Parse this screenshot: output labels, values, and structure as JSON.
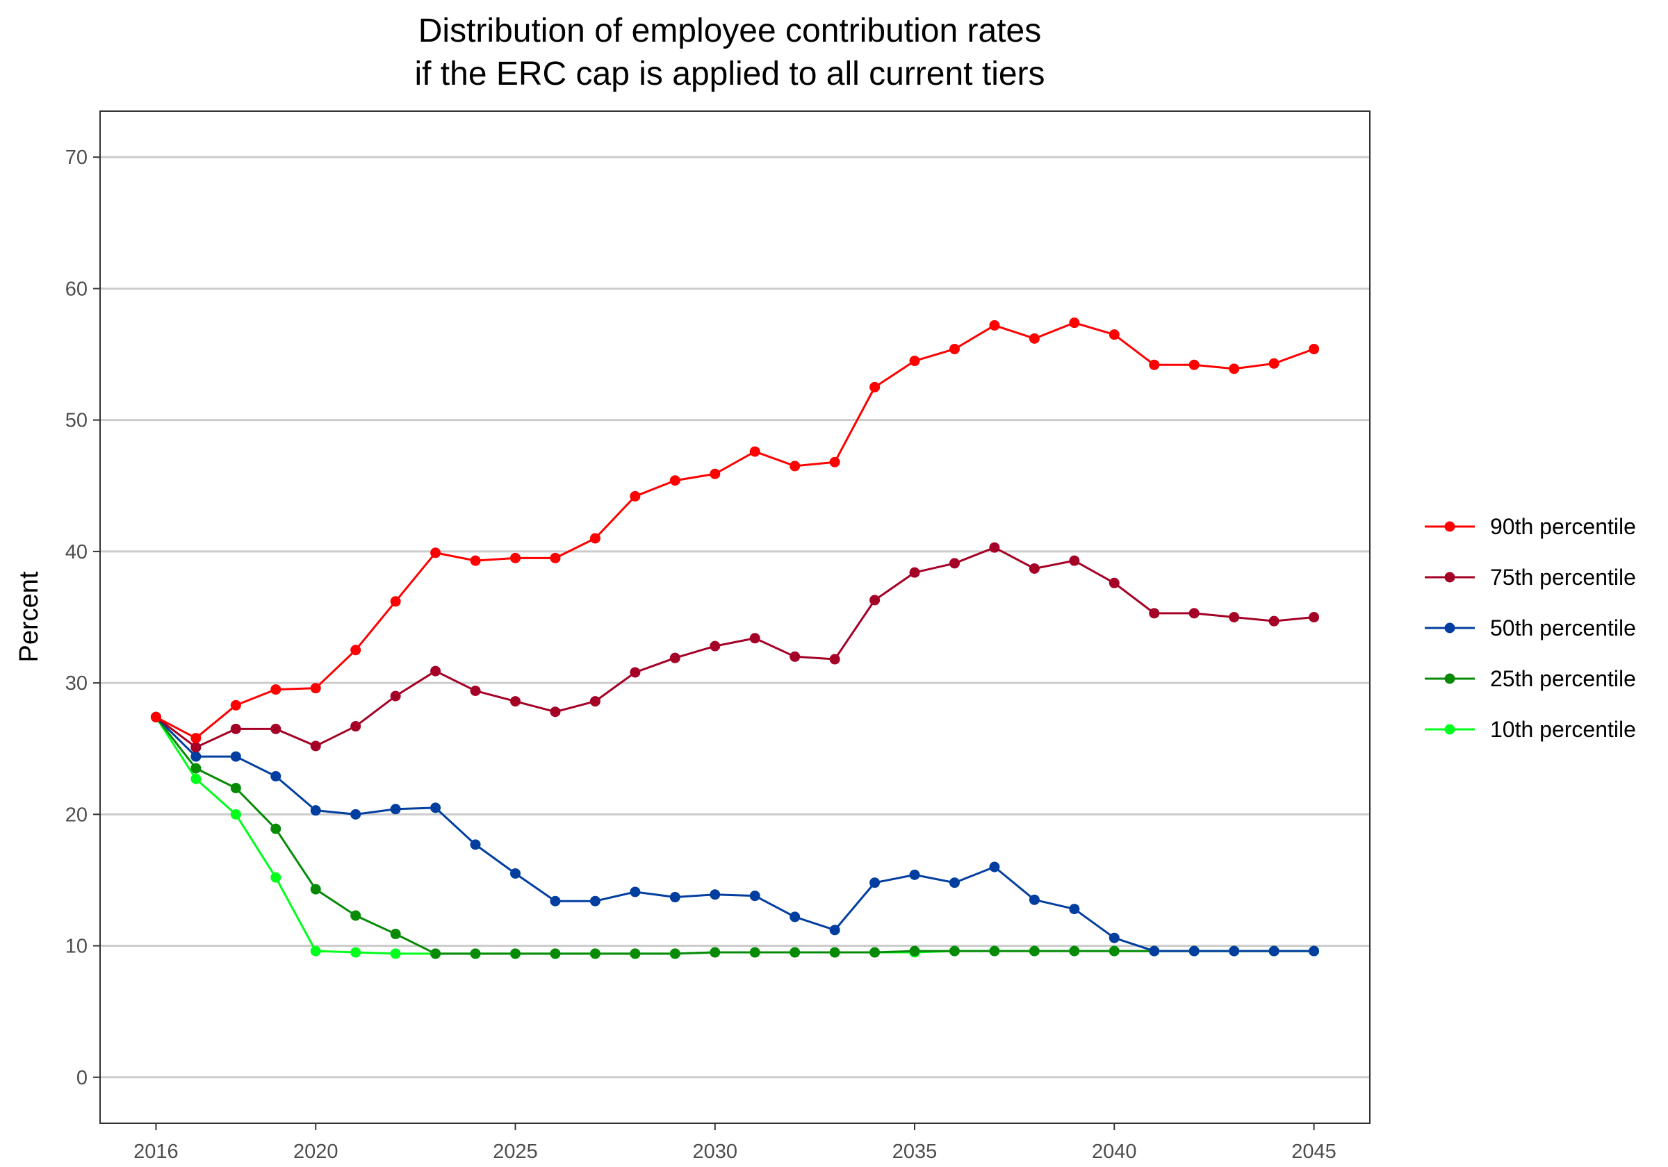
{
  "chart_data": {
    "type": "line",
    "title": "Distribution of employee contribution rates",
    "subtitle": "if the ERC cap is applied to all current tiers",
    "xlabel": "",
    "ylabel": "Percent",
    "xlim": [
      2014.6,
      2046.4
    ],
    "ylim": [
      -3.5,
      73.5
    ],
    "x_ticks": [
      2016,
      2020,
      2025,
      2030,
      2035,
      2040,
      2045
    ],
    "y_ticks": [
      0,
      10,
      20,
      30,
      40,
      50,
      60,
      70
    ],
    "grid": "horizontal",
    "legend_position": "right",
    "x": [
      2016,
      2017,
      2018,
      2019,
      2020,
      2021,
      2022,
      2023,
      2024,
      2025,
      2026,
      2027,
      2028,
      2029,
      2030,
      2031,
      2032,
      2033,
      2034,
      2035,
      2036,
      2037,
      2038,
      2039,
      2040,
      2041,
      2042,
      2043,
      2044,
      2045
    ],
    "series": [
      {
        "name": "90th percentile",
        "color": "#ff0000",
        "values": [
          27.4,
          25.8,
          28.3,
          29.5,
          29.6,
          32.5,
          36.2,
          39.9,
          39.3,
          39.5,
          39.5,
          41.0,
          44.2,
          45.4,
          45.9,
          47.6,
          46.5,
          46.8,
          52.5,
          54.5,
          55.4,
          57.2,
          56.2,
          57.4,
          56.5,
          54.2,
          54.2,
          53.9,
          54.3,
          55.4
        ]
      },
      {
        "name": "75th percentile",
        "color": "#a50026",
        "values": [
          27.4,
          25.1,
          26.5,
          26.5,
          25.2,
          26.7,
          29.0,
          30.9,
          29.4,
          28.6,
          27.8,
          28.6,
          30.8,
          31.9,
          32.8,
          33.4,
          32.0,
          31.8,
          36.3,
          38.4,
          39.1,
          40.3,
          38.7,
          39.3,
          37.6,
          35.3,
          35.3,
          35.0,
          34.7,
          35.0
        ]
      },
      {
        "name": "50th percentile",
        "color": "#023ea0",
        "values": [
          27.4,
          24.4,
          24.4,
          22.9,
          20.3,
          20.0,
          20.4,
          20.5,
          17.7,
          15.5,
          13.4,
          13.4,
          14.1,
          13.7,
          13.9,
          13.8,
          12.2,
          11.2,
          14.8,
          15.4,
          14.8,
          16.0,
          13.5,
          12.8,
          10.6,
          9.6,
          9.6,
          9.6,
          9.6,
          9.6
        ]
      },
      {
        "name": "25th percentile",
        "color": "#078b07",
        "values": [
          27.4,
          23.5,
          22.0,
          18.9,
          14.3,
          12.3,
          10.9,
          9.4,
          9.4,
          9.4,
          9.4,
          9.4,
          9.4,
          9.4,
          9.5,
          9.5,
          9.5,
          9.5,
          9.5,
          9.6,
          9.6,
          9.6,
          9.6,
          9.6,
          9.6,
          9.6,
          9.6,
          9.6,
          9.6,
          9.6
        ]
      },
      {
        "name": "10th percentile",
        "color": "#00ff1a",
        "values": [
          27.4,
          22.7,
          20.0,
          15.2,
          9.6,
          9.5,
          9.4,
          9.4,
          9.4,
          9.4,
          9.4,
          9.4,
          9.4,
          9.4,
          9.5,
          9.5,
          9.5,
          9.5,
          9.5,
          9.5,
          9.6,
          9.6,
          9.6,
          9.6,
          9.6,
          9.6,
          9.6,
          9.6,
          9.6,
          9.6
        ]
      }
    ]
  }
}
